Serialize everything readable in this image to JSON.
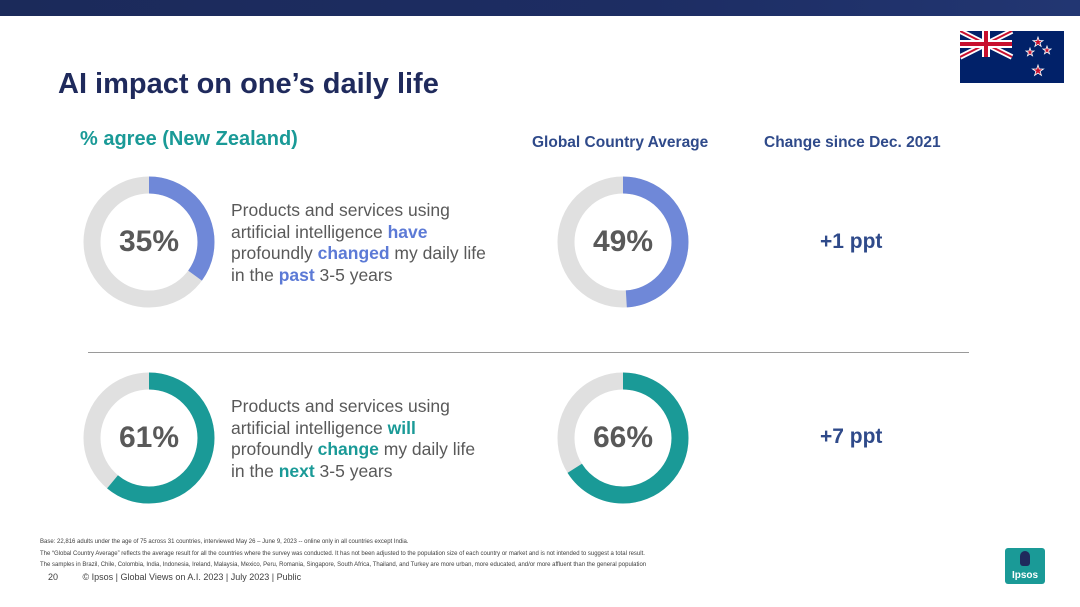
{
  "header": {
    "title": "AI impact on one’s daily life"
  },
  "columns": {
    "nz": "% agree (New Zealand)",
    "global": "Global Country Average",
    "change": "Change since Dec. 2021"
  },
  "rows": [
    {
      "nz_value": 35,
      "nz_label": "35%",
      "global_value": 49,
      "global_label": "49%",
      "change": "+1 ppt",
      "color": "#6f88d8",
      "desc_a": "Products and services using artificial intelligence ",
      "desc_b": "have",
      "desc_c": " profoundly ",
      "desc_d": "changed",
      "desc_e": " my daily life in the ",
      "desc_f": "past",
      "desc_g": " 3-5 years"
    },
    {
      "nz_value": 61,
      "nz_label": "61%",
      "global_value": 66,
      "global_label": "66%",
      "change": "+7 ppt",
      "color": "#1a9a97",
      "desc_a": "Products and services using artificial intelligence ",
      "desc_b": "will",
      "desc_c": " profoundly ",
      "desc_d": "change",
      "desc_e": " my daily life in the ",
      "desc_f": "next",
      "desc_g": " 3-5 years"
    }
  ],
  "track_color": "#e0e0e0",
  "footnotes": [
    "Base: 22,816 adults under the age of 75 across 31 countries, interviewed May 26 – June 9, 2023 -- online only in all countries except India.",
    "The “Global Country Average” reflects the average result for all the countries where the survey was conducted. It has not been adjusted to the population size of each country or market and is not intended to suggest a total result.",
    "The samples in Brazil, Chile, Colombia, India, Indonesia, Ireland, Malaysia, Mexico, Peru, Romania, Singapore, South Africa, Thailand, and Turkey are more urban, more educated, and/or more affluent than the general population"
  ],
  "footer": {
    "page": "20",
    "text": "© Ipsos | Global Views on A.I. 2023 | July 2023 | Public"
  },
  "logo": {
    "text": "Ipsos"
  },
  "flag": {
    "name": "new-zealand-flag"
  }
}
